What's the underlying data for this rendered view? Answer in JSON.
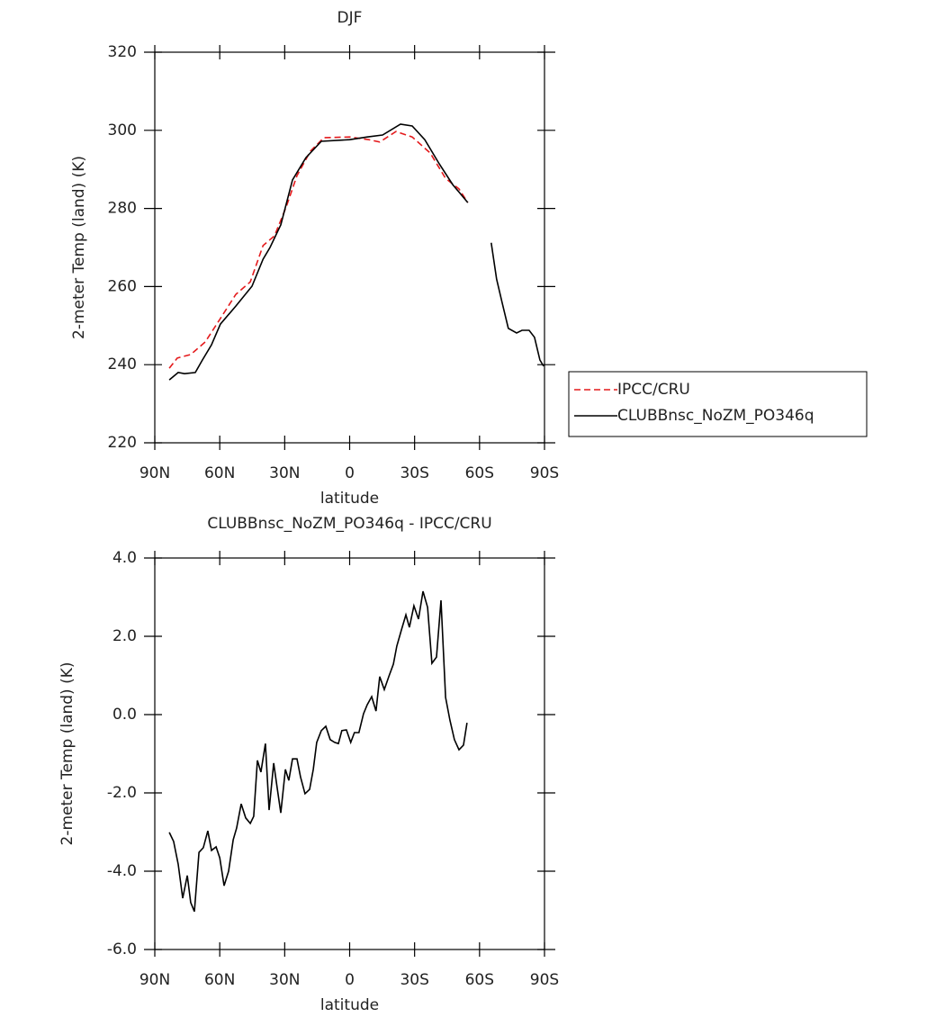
{
  "chart_data": [
    {
      "type": "line",
      "title": "DJF",
      "x_label": "latitude",
      "y_label": "2-meter Temp (land) (K)",
      "xlim": [
        90,
        -90
      ],
      "xticks": [
        {
          "value": 90,
          "label": "90N"
        },
        {
          "value": 60,
          "label": "60N"
        },
        {
          "value": 30,
          "label": "30N"
        },
        0,
        {
          "value": -30,
          "label": "30S"
        },
        {
          "value": -60,
          "label": "60S"
        },
        {
          "value": -90,
          "label": "90S"
        }
      ],
      "ylim": [
        220,
        320
      ],
      "yticks": [
        220,
        240,
        260,
        280,
        300,
        320
      ],
      "legend": "right",
      "series": [
        {
          "name": "IPCC/CRU",
          "color": "#e41a1c",
          "linestyle": "dashed",
          "x": [
            83.3,
            79.6,
            73.4,
            66.7,
            60,
            52.6,
            45.9,
            40,
            34.7,
            29.3,
            24.3,
            18.1,
            11.9,
            0,
            -8.9,
            -13.9,
            -21.4,
            -28.9,
            -37.2,
            -44.3,
            -50.5,
            -54.6
          ],
          "values": [
            239.1,
            241.7,
            242.6,
            245.8,
            251.6,
            258,
            261.2,
            270.5,
            273,
            280.4,
            288.4,
            294.7,
            298.1,
            298.3,
            297.6,
            297,
            299.7,
            298.3,
            294.2,
            287.7,
            285,
            281.5
          ]
        },
        {
          "name": "CLUBBnsc_NoZM_PO346q",
          "color": "#000000",
          "linestyle": "solid",
          "x": [
            83.3,
            79.2,
            76.3,
            71.3,
            68,
            63.8,
            59.7,
            52.6,
            45.1,
            40,
            36.8,
            31.8,
            26.4,
            20.2,
            13.1,
            0,
            -8.1,
            -15.2,
            -23.5,
            -28.9,
            -34.7,
            -41.4,
            -47.6,
            -54.6,
            null,
            -65.4,
            -67.9,
            -70.4,
            -73.3,
            -77.1,
            -79.6,
            -82.9,
            -85.4,
            -87.9,
            -89.6
          ],
          "values": [
            236.1,
            238,
            237.7,
            238,
            241.2,
            245.1,
            250.4,
            255,
            260.1,
            267,
            270,
            275.8,
            287.3,
            293,
            297.2,
            297.6,
            298.3,
            298.8,
            301.6,
            301.1,
            297.6,
            291.4,
            286.1,
            281.5,
            null,
            271.2,
            261.9,
            255.9,
            249.3,
            248.1,
            248.8,
            248.8,
            247,
            241.2,
            239.6
          ]
        }
      ]
    },
    {
      "type": "line",
      "title": "CLUBBnsc_NoZM_PO346q - IPCC/CRU",
      "x_label": "latitude",
      "y_label": "2-meter Temp (land) (K)",
      "xlim": [
        90,
        -90
      ],
      "xticks": [
        {
          "value": 90,
          "label": "90N"
        },
        {
          "value": 60,
          "label": "60N"
        },
        {
          "value": 30,
          "label": "30N"
        },
        0,
        {
          "value": -30,
          "label": "30S"
        },
        {
          "value": -60,
          "label": "60S"
        },
        {
          "value": -90,
          "label": "90S"
        }
      ],
      "ylim": [
        -6,
        4
      ],
      "yticks": [
        {
          "value": -6,
          "label": "-6.0"
        },
        {
          "value": -4,
          "label": "-4.0"
        },
        {
          "value": -2,
          "label": "-2.0"
        },
        {
          "value": 0,
          "label": "0.0"
        },
        {
          "value": 2,
          "label": "2.0"
        },
        {
          "value": 4,
          "label": "4.0"
        }
      ],
      "series": [
        {
          "color": "#000000",
          "linestyle": "solid",
          "x": [
            83.3,
            81.3,
            79.2,
            77.1,
            75,
            73.4,
            71.7,
            69.6,
            67.6,
            65.5,
            63.8,
            61.7,
            60,
            58,
            55.9,
            53.8,
            52.2,
            50.1,
            48,
            45.9,
            44.3,
            42.6,
            41,
            38.9,
            37.2,
            35.1,
            33.5,
            31.8,
            29.7,
            28.1,
            26.4,
            24.3,
            22.7,
            20.6,
            18.5,
            16.8,
            15.2,
            13.1,
            11,
            9,
            6.9,
            5.2,
            3.6,
            1.5,
            -0.5,
            -2.2,
            -4.3,
            -6.4,
            -8.1,
            -10.2,
            -12.2,
            -13.9,
            -16,
            -18.1,
            -20.2,
            -21.8,
            -23.9,
            -26,
            -27.6,
            -29.7,
            -31.8,
            -33.9,
            -36,
            -38,
            -40.1,
            -42.2,
            -44.3,
            -46.3,
            -48.4,
            -50.5,
            -52.6,
            -54.2
          ],
          "values": [
            -3.01,
            -3.24,
            -3.82,
            -4.69,
            -4.11,
            -4.8,
            -5.03,
            -3.52,
            -3.4,
            -2.97,
            -3.47,
            -3.38,
            -3.66,
            -4.37,
            -4,
            -3.2,
            -2.9,
            -2.28,
            -2.64,
            -2.78,
            -2.6,
            -1.17,
            -1.47,
            -0.74,
            -2.44,
            -1.24,
            -1.86,
            -2.51,
            -1.4,
            -1.68,
            -1.13,
            -1.13,
            -1.59,
            -2.02,
            -1.91,
            -1.4,
            -0.71,
            -0.41,
            -0.3,
            -0.64,
            -0.71,
            -0.74,
            -0.41,
            -0.39,
            -0.71,
            -0.46,
            -0.46,
            0.02,
            0.25,
            0.46,
            0.09,
            0.97,
            0.64,
            0.97,
            1.29,
            1.75,
            2.16,
            2.55,
            2.23,
            2.78,
            2.44,
            3.15,
            2.74,
            1.31,
            1.47,
            2.92,
            0.44,
            -0.14,
            -0.64,
            -0.9,
            -0.78,
            -0.21
          ]
        }
      ]
    }
  ]
}
